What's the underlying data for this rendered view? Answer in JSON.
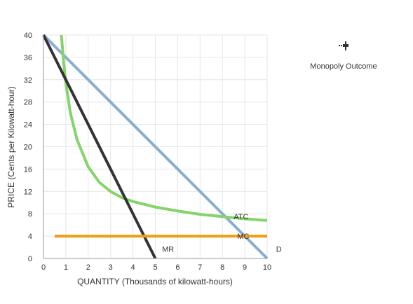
{
  "chart_data": {
    "type": "line",
    "xlabel": "QUANTITY (Thousands of kilowatt-hours)",
    "ylabel": "PRICE (Cents per Kilowatt-hour)",
    "xlim": [
      0,
      10
    ],
    "ylim": [
      0,
      40
    ],
    "x_ticks": [
      "0",
      "1",
      "2",
      "3",
      "4",
      "5",
      "6",
      "7",
      "8",
      "9",
      "10"
    ],
    "y_ticks": [
      "0",
      "4",
      "8",
      "12",
      "16",
      "20",
      "24",
      "28",
      "32",
      "36",
      "40"
    ],
    "grid": true,
    "series": [
      {
        "name": "D",
        "color": "#8aaed2",
        "points": [
          [
            0,
            40
          ],
          [
            10,
            0
          ]
        ]
      },
      {
        "name": "MR",
        "color": "#333333",
        "points": [
          [
            0,
            40
          ],
          [
            5,
            0
          ]
        ]
      },
      {
        "name": "MC",
        "color": "#f39c12",
        "points": [
          [
            0.5,
            4
          ],
          [
            10,
            4
          ]
        ]
      },
      {
        "name": "ATC",
        "color": "#85d46a",
        "points": [
          [
            0.8,
            40
          ],
          [
            0.9,
            35.2
          ],
          [
            1,
            31.4
          ],
          [
            1.2,
            26.1
          ],
          [
            1.5,
            21.3
          ],
          [
            2,
            16.4
          ],
          [
            2.5,
            13.6
          ],
          [
            3,
            12.0
          ],
          [
            3.5,
            10.9
          ],
          [
            4,
            10.2
          ],
          [
            5,
            9.2
          ],
          [
            6,
            8.5
          ],
          [
            7,
            7.9
          ],
          [
            8,
            7.5
          ],
          [
            9,
            7.1
          ],
          [
            10,
            6.8
          ]
        ]
      }
    ]
  },
  "tools": {
    "icon_name": "monopoly-outcome-icon",
    "label": "Monopoly Outcome",
    "color": "#333333"
  }
}
